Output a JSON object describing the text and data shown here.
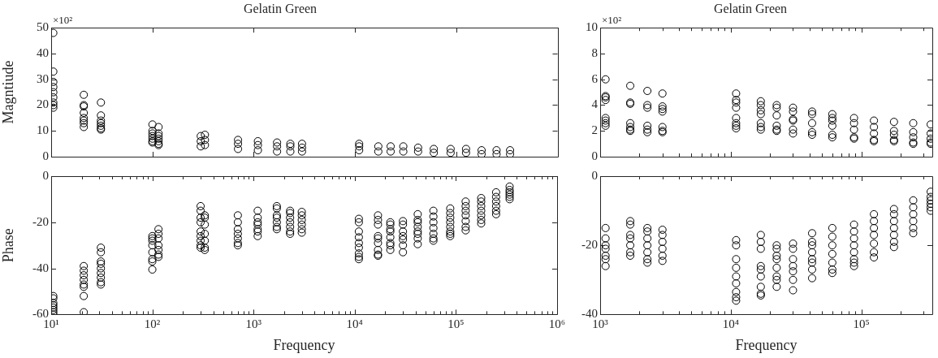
{
  "chart_data": [
    {
      "type": "scatter",
      "title": "Gelatin Green",
      "ylabel": "Magntiude",
      "annotations": [
        "×10²"
      ],
      "log": "x",
      "tick_labels": "y",
      "marker": "circle",
      "xlim": [
        10,
        1000000
      ],
      "xticks": [
        10,
        100,
        1000,
        10000,
        100000,
        1000000
      ],
      "ylim": [
        0,
        50
      ],
      "yticks": [
        0,
        10,
        20,
        30,
        40,
        50
      ],
      "series": [
        {
          "color": "#000000",
          "x": [
            10.5,
            10.5,
            10.5,
            10.5,
            10.5,
            10.5,
            10.5,
            10.5,
            10.5
          ],
          "values": [
            48,
            33,
            29,
            27,
            25,
            23,
            21,
            20,
            19
          ]
        },
        {
          "color": "#000000",
          "x": [
            21,
            21,
            21,
            21,
            21,
            21,
            21,
            21
          ],
          "values": [
            24,
            20,
            19.5,
            17,
            15,
            14,
            13,
            11.5
          ]
        },
        {
          "color": "#000000",
          "x": [
            31,
            31,
            31,
            31,
            31,
            31,
            31
          ],
          "values": [
            21,
            16,
            14,
            13,
            12,
            11,
            10.5
          ]
        },
        {
          "color": "#000000",
          "x": [
            100,
            100,
            100,
            100,
            100,
            100,
            100
          ],
          "values": [
            12.5,
            10,
            9,
            8,
            7,
            6,
            5.5
          ]
        },
        {
          "color": "#000000",
          "x": [
            115,
            115,
            115,
            115,
            115,
            115,
            115
          ],
          "values": [
            11.5,
            9,
            8,
            7,
            6,
            5,
            4.5
          ]
        },
        {
          "color": "#000000",
          "x": [
            300,
            300,
            300
          ],
          "values": [
            8,
            6,
            4
          ]
        },
        {
          "color": "#000000",
          "x": [
            330,
            330,
            330
          ],
          "values": [
            8.5,
            6.5,
            4.5
          ]
        },
        {
          "color": "#000000",
          "x": [
            700,
            700,
            700
          ],
          "values": [
            6.5,
            5,
            3
          ]
        },
        {
          "color": "#000000",
          "x": [
            1100,
            1100,
            1100
          ],
          "values": [
            6,
            4.5,
            2.5
          ]
        },
        {
          "color": "#000000",
          "x": [
            1700,
            1700,
            1700
          ],
          "values": [
            5.5,
            4,
            2
          ]
        },
        {
          "color": "#000000",
          "x": [
            2300,
            2300,
            2300
          ],
          "values": [
            5,
            4,
            2
          ]
        },
        {
          "color": "#000000",
          "x": [
            3000,
            3000,
            3000
          ],
          "values": [
            5,
            3.5,
            2
          ]
        },
        {
          "color": "#000000",
          "x": [
            11000,
            11000,
            11000
          ],
          "values": [
            5,
            4,
            2.5
          ]
        },
        {
          "color": "#000000",
          "x": [
            17000,
            17000
          ],
          "values": [
            4,
            2
          ]
        },
        {
          "color": "#000000",
          "x": [
            22500,
            22500
          ],
          "values": [
            4,
            2
          ]
        },
        {
          "color": "#000000",
          "x": [
            30000,
            30000
          ],
          "values": [
            4,
            2
          ]
        },
        {
          "color": "#000000",
          "x": [
            42000,
            42000
          ],
          "values": [
            3.5,
            2
          ]
        },
        {
          "color": "#000000",
          "x": [
            60000,
            60000
          ],
          "values": [
            3,
            1.5
          ]
        },
        {
          "color": "#000000",
          "x": [
            88000,
            88000
          ],
          "values": [
            3,
            1.5
          ]
        },
        {
          "color": "#000000",
          "x": [
            125000,
            125000
          ],
          "values": [
            3,
            1.5
          ]
        },
        {
          "color": "#000000",
          "x": [
            178000,
            178000
          ],
          "values": [
            2.5,
            1
          ]
        },
        {
          "color": "#000000",
          "x": [
            250000,
            250000
          ],
          "values": [
            2.5,
            1
          ]
        },
        {
          "color": "#000000",
          "x": [
            340000,
            340000
          ],
          "values": [
            2.5,
            1
          ]
        }
      ]
    },
    {
      "type": "scatter",
      "title": "Gelatin Green",
      "annotations": [
        "×10²"
      ],
      "log": "x",
      "tick_labels": "y",
      "marker": "circle",
      "xlim": [
        1000,
        350000
      ],
      "xticks": [
        1000,
        {
          "value": 2000,
          "label": null
        },
        {
          "value": 3000,
          "label": null
        },
        {
          "value": 4000,
          "label": null
        },
        {
          "value": 5000,
          "label": null
        },
        {
          "value": 6000,
          "label": null
        },
        {
          "value": 7000,
          "label": null
        },
        {
          "value": 8000,
          "label": null
        },
        {
          "value": 9000,
          "label": null
        },
        10000,
        {
          "value": 20000,
          "label": null
        },
        {
          "value": 30000,
          "label": null
        },
        {
          "value": 40000,
          "label": null
        },
        {
          "value": 50000,
          "label": null
        },
        {
          "value": 60000,
          "label": null
        },
        {
          "value": 70000,
          "label": null
        },
        {
          "value": 80000,
          "label": null
        },
        {
          "value": 90000,
          "label": null
        },
        100000,
        {
          "value": 200000,
          "label": null
        },
        {
          "value": 300000,
          "label": null
        }
      ],
      "ylim": [
        0,
        10
      ],
      "yticks": [
        0,
        2,
        4,
        6,
        8,
        10
      ],
      "series": [
        {
          "color": "#000000",
          "x": [
            1100,
            1100,
            1100,
            1100,
            1100,
            1100,
            1100,
            1100
          ],
          "values": [
            6.0,
            4.7,
            4.6,
            4.4,
            3.0,
            2.8,
            2.6,
            2.4
          ]
        },
        {
          "color": "#000000",
          "x": [
            1700,
            1700,
            1700,
            1700,
            1700,
            1700,
            1700
          ],
          "values": [
            5.5,
            4.2,
            4.1,
            2.6,
            2.3,
            2.1,
            2.0
          ]
        },
        {
          "color": "#000000",
          "x": [
            2300,
            2300,
            2300,
            2300,
            2300,
            2300
          ],
          "values": [
            5.1,
            4.0,
            3.8,
            2.4,
            2.1,
            1.9
          ]
        },
        {
          "color": "#000000",
          "x": [
            3000,
            3000,
            3000,
            3000,
            3000,
            3000,
            3000
          ],
          "values": [
            4.9,
            3.9,
            3.7,
            3.5,
            2.3,
            2.0,
            1.9
          ]
        },
        {
          "color": "#000000",
          "x": [
            11000,
            11000,
            11000,
            11000,
            11000,
            11000,
            11000,
            11000
          ],
          "values": [
            4.9,
            4.4,
            4.2,
            3.8,
            3.0,
            2.6,
            2.4,
            2.2
          ]
        },
        {
          "color": "#000000",
          "x": [
            17000,
            17000,
            17000,
            17000,
            17000,
            17000,
            17000
          ],
          "values": [
            4.3,
            4.0,
            3.6,
            3.3,
            2.6,
            2.3,
            2.1
          ]
        },
        {
          "color": "#000000",
          "x": [
            22500,
            22500,
            22500,
            22500,
            22500,
            22500
          ],
          "values": [
            4.0,
            3.8,
            3.2,
            2.4,
            2.1,
            2.0
          ]
        },
        {
          "color": "#000000",
          "x": [
            30000,
            30000,
            30000,
            30000,
            30000,
            30000
          ],
          "values": [
            3.8,
            3.5,
            2.9,
            2.8,
            2.1,
            1.8
          ]
        },
        {
          "color": "#000000",
          "x": [
            42000,
            42000,
            42000,
            42000,
            42000
          ],
          "values": [
            3.5,
            3.3,
            2.6,
            1.9,
            1.7
          ]
        },
        {
          "color": "#000000",
          "x": [
            60000,
            60000,
            60000,
            60000,
            60000,
            60000
          ],
          "values": [
            3.3,
            3.0,
            2.8,
            2.4,
            1.7,
            1.5
          ]
        },
        {
          "color": "#000000",
          "x": [
            88000,
            88000,
            88000,
            88000,
            88000
          ],
          "values": [
            3.0,
            2.6,
            2.1,
            1.5,
            1.4
          ]
        },
        {
          "color": "#000000",
          "x": [
            125000,
            125000,
            125000,
            125000,
            125000
          ],
          "values": [
            2.8,
            2.3,
            1.8,
            1.3,
            1.2
          ]
        },
        {
          "color": "#000000",
          "x": [
            178000,
            178000,
            178000,
            178000,
            178000
          ],
          "values": [
            2.7,
            2.0,
            1.7,
            1.3,
            1.2
          ]
        },
        {
          "color": "#000000",
          "x": [
            250000,
            250000,
            250000,
            250000,
            250000
          ],
          "values": [
            2.6,
            1.9,
            1.5,
            1.1,
            1.0
          ]
        },
        {
          "color": "#000000",
          "x": [
            340000,
            340000,
            340000,
            340000,
            340000
          ],
          "values": [
            2.5,
            1.8,
            1.4,
            1.1,
            1.0
          ]
        }
      ]
    },
    {
      "type": "scatter",
      "ylabel": "Phase",
      "xlabel": "Frequency",
      "log": "x",
      "marker": "circle",
      "xlim": [
        10,
        1000000
      ],
      "xticks": [
        {
          "value": 10,
          "label": "10¹"
        },
        {
          "value": 20,
          "label": null
        },
        {
          "value": 30,
          "label": null
        },
        {
          "value": 40,
          "label": null
        },
        {
          "value": 50,
          "label": null
        },
        {
          "value": 60,
          "label": null
        },
        {
          "value": 70,
          "label": null
        },
        {
          "value": 80,
          "label": null
        },
        {
          "value": 90,
          "label": null
        },
        {
          "value": 100,
          "label": "10²"
        },
        {
          "value": 200,
          "label": null
        },
        {
          "value": 300,
          "label": null
        },
        {
          "value": 400,
          "label": null
        },
        {
          "value": 500,
          "label": null
        },
        {
          "value": 600,
          "label": null
        },
        {
          "value": 700,
          "label": null
        },
        {
          "value": 800,
          "label": null
        },
        {
          "value": 900,
          "label": null
        },
        {
          "value": 1000,
          "label": "10³"
        },
        {
          "value": 2000,
          "label": null
        },
        {
          "value": 3000,
          "label": null
        },
        {
          "value": 4000,
          "label": null
        },
        {
          "value": 5000,
          "label": null
        },
        {
          "value": 6000,
          "label": null
        },
        {
          "value": 7000,
          "label": null
        },
        {
          "value": 8000,
          "label": null
        },
        {
          "value": 9000,
          "label": null
        },
        {
          "value": 10000,
          "label": "10⁴"
        },
        {
          "value": 20000,
          "label": null
        },
        {
          "value": 30000,
          "label": null
        },
        {
          "value": 40000,
          "label": null
        },
        {
          "value": 50000,
          "label": null
        },
        {
          "value": 60000,
          "label": null
        },
        {
          "value": 70000,
          "label": null
        },
        {
          "value": 80000,
          "label": null
        },
        {
          "value": 90000,
          "label": null
        },
        {
          "value": 100000,
          "label": "10⁵"
        },
        {
          "value": 200000,
          "label": null
        },
        {
          "value": 300000,
          "label": null
        },
        {
          "value": 400000,
          "label": null
        },
        {
          "value": 500000,
          "label": null
        },
        {
          "value": 600000,
          "label": null
        },
        {
          "value": 700000,
          "label": null
        },
        {
          "value": 800000,
          "label": null
        },
        {
          "value": 900000,
          "label": null
        },
        {
          "value": 1000000,
          "label": "10⁶"
        }
      ],
      "ylim": [
        -60,
        0
      ],
      "yticks": [
        -60,
        -40,
        -20,
        0
      ],
      "series": [
        {
          "color": "#000000",
          "x": [
            10.5,
            10.5,
            10.5,
            10.5,
            10.5,
            10.5,
            10.5,
            10.5
          ],
          "values": [
            -52,
            -53,
            -55,
            -56,
            -57,
            -58,
            -59,
            -60
          ]
        },
        {
          "color": "#000000",
          "x": [
            21,
            21,
            21,
            21,
            21,
            21,
            21,
            21
          ],
          "values": [
            -39,
            -41,
            -43,
            -45,
            -47,
            -48,
            -52,
            -59
          ]
        },
        {
          "color": "#000000",
          "x": [
            31,
            31,
            31,
            31,
            31,
            31,
            31,
            31,
            31
          ],
          "values": [
            -31,
            -33,
            -37,
            -38,
            -40,
            -42,
            -44,
            -46,
            -47
          ]
        },
        {
          "color": "#000000",
          "x": [
            100,
            100,
            100,
            100,
            100,
            100,
            100,
            100
          ],
          "values": [
            -26,
            -27,
            -28,
            -30,
            -33,
            -36,
            -37,
            -40.5
          ]
        },
        {
          "color": "#000000",
          "x": [
            115,
            115,
            115,
            115,
            115,
            115,
            115
          ],
          "values": [
            -23,
            -25,
            -27,
            -30,
            -32,
            -34,
            -35
          ]
        },
        {
          "color": "#000000",
          "x": [
            300,
            300,
            300,
            300,
            300,
            300,
            300,
            300,
            300
          ],
          "values": [
            -13,
            -15,
            -18,
            -20,
            -24,
            -26,
            -28,
            -30,
            -31
          ]
        },
        {
          "color": "#000000",
          "x": [
            330,
            330,
            330,
            330,
            330,
            330,
            330
          ],
          "values": [
            -17,
            -18,
            -21,
            -25,
            -28,
            -31,
            -32
          ]
        },
        {
          "color": "#000000",
          "x": [
            700,
            700,
            700,
            700,
            700,
            700,
            700
          ],
          "values": [
            -17,
            -20,
            -23,
            -25,
            -27,
            -29,
            -30
          ]
        },
        {
          "color": "#000000",
          "x": [
            1100,
            1100,
            1100,
            1100,
            1100,
            1100,
            1100
          ],
          "values": [
            -15,
            -18,
            -20,
            -21,
            -23,
            -24,
            -26
          ]
        },
        {
          "color": "#000000",
          "x": [
            1700,
            1700,
            1700,
            1700,
            1700,
            1700,
            1700
          ],
          "values": [
            -13,
            -14,
            -17,
            -18,
            -20,
            -22,
            -23
          ]
        },
        {
          "color": "#000000",
          "x": [
            2300,
            2300,
            2300,
            2300,
            2300,
            2300,
            2300
          ],
          "values": [
            -15,
            -16,
            -18,
            -20,
            -22,
            -24,
            -25
          ]
        },
        {
          "color": "#000000",
          "x": [
            3000,
            3000,
            3000,
            3000,
            3000,
            3000
          ],
          "values": [
            -15.5,
            -17,
            -19,
            -21,
            -23,
            -24.5
          ]
        },
        {
          "color": "#000000",
          "x": [
            11000,
            11000,
            11000,
            11000,
            11000,
            11000,
            11000,
            11000,
            11000
          ],
          "values": [
            -18.5,
            -20,
            -24,
            -26.5,
            -29,
            -31,
            -33.5,
            -35,
            -36
          ]
        },
        {
          "color": "#000000",
          "x": [
            17000,
            17000,
            17000,
            17000,
            17000,
            17000,
            17000,
            17000,
            17000
          ],
          "values": [
            -17,
            -19,
            -21,
            -26,
            -27,
            -29,
            -32,
            -34,
            -34.5
          ]
        },
        {
          "color": "#000000",
          "x": [
            22500,
            22500,
            22500,
            22500,
            22500,
            22500,
            22500,
            22500
          ],
          "values": [
            -20,
            -21,
            -23,
            -24,
            -26.5,
            -29,
            -30,
            -32
          ]
        },
        {
          "color": "#000000",
          "x": [
            30000,
            30000,
            30000,
            30000,
            30000,
            30000,
            30000
          ],
          "values": [
            -19.5,
            -21,
            -24,
            -26,
            -27.5,
            -30,
            -33
          ]
        },
        {
          "color": "#000000",
          "x": [
            42000,
            42000,
            42000,
            42000,
            42000,
            42000,
            42000,
            42000
          ],
          "values": [
            -16.5,
            -19,
            -20,
            -22,
            -24,
            -25,
            -27,
            -29.5
          ]
        },
        {
          "color": "#000000",
          "x": [
            60000,
            60000,
            60000,
            60000,
            60000,
            60000,
            60000
          ],
          "values": [
            -15,
            -17.5,
            -20,
            -22.5,
            -25,
            -27,
            -28
          ]
        },
        {
          "color": "#000000",
          "x": [
            88000,
            88000,
            88000,
            88000,
            88000,
            88000,
            88000,
            88000
          ],
          "values": [
            -14,
            -16,
            -18,
            -20,
            -22,
            -24,
            -25,
            -26
          ]
        },
        {
          "color": "#000000",
          "x": [
            125000,
            125000,
            125000,
            125000,
            125000,
            125000,
            125000
          ],
          "values": [
            -11,
            -13,
            -15,
            -17,
            -19.5,
            -22,
            -23.5
          ]
        },
        {
          "color": "#000000",
          "x": [
            178000,
            178000,
            178000,
            178000,
            178000,
            178000,
            178000
          ],
          "values": [
            -9.5,
            -11,
            -13,
            -15,
            -17,
            -19,
            -20.5
          ]
        },
        {
          "color": "#000000",
          "x": [
            250000,
            250000,
            250000,
            250000,
            250000,
            250000
          ],
          "values": [
            -7,
            -9,
            -11,
            -13,
            -15,
            -16.5
          ]
        },
        {
          "color": "#000000",
          "x": [
            340000,
            340000,
            340000,
            340000,
            340000,
            340000
          ],
          "values": [
            -4.5,
            -6,
            -7,
            -8,
            -9,
            -10
          ]
        }
      ]
    },
    {
      "type": "scatter",
      "xlabel": "Frequency",
      "log": "x",
      "marker": "circle",
      "xlim": [
        1000,
        350000
      ],
      "xticks": [
        {
          "value": 1000,
          "label": "10³"
        },
        {
          "value": 2000,
          "label": null
        },
        {
          "value": 3000,
          "label": null
        },
        {
          "value": 4000,
          "label": null
        },
        {
          "value": 5000,
          "label": null
        },
        {
          "value": 6000,
          "label": null
        },
        {
          "value": 7000,
          "label": null
        },
        {
          "value": 8000,
          "label": null
        },
        {
          "value": 9000,
          "label": null
        },
        {
          "value": 10000,
          "label": "10⁴"
        },
        {
          "value": 20000,
          "label": null
        },
        {
          "value": 30000,
          "label": null
        },
        {
          "value": 40000,
          "label": null
        },
        {
          "value": 50000,
          "label": null
        },
        {
          "value": 60000,
          "label": null
        },
        {
          "value": 70000,
          "label": null
        },
        {
          "value": 80000,
          "label": null
        },
        {
          "value": 90000,
          "label": null
        },
        {
          "value": 100000,
          "label": "10⁵"
        },
        {
          "value": 200000,
          "label": null
        },
        {
          "value": 300000,
          "label": null
        }
      ],
      "ylim": [
        -40,
        0
      ],
      "yticks": [
        -40,
        -20,
        0
      ],
      "series": [
        {
          "color": "#000000",
          "x": [
            1100,
            1100,
            1100,
            1100,
            1100,
            1100,
            1100
          ],
          "values": [
            -15,
            -18,
            -20,
            -21,
            -23,
            -24,
            -26
          ]
        },
        {
          "color": "#000000",
          "x": [
            1700,
            1700,
            1700,
            1700,
            1700,
            1700,
            1700
          ],
          "values": [
            -13,
            -14,
            -17,
            -18,
            -20,
            -22,
            -23
          ]
        },
        {
          "color": "#000000",
          "x": [
            2300,
            2300,
            2300,
            2300,
            2300,
            2300,
            2300
          ],
          "values": [
            -15,
            -16,
            -18,
            -20,
            -22,
            -24,
            -25
          ]
        },
        {
          "color": "#000000",
          "x": [
            3000,
            3000,
            3000,
            3000,
            3000,
            3000
          ],
          "values": [
            -15.5,
            -17,
            -19,
            -21,
            -23,
            -24.5
          ]
        },
        {
          "color": "#000000",
          "x": [
            11000,
            11000,
            11000,
            11000,
            11000,
            11000,
            11000,
            11000,
            11000
          ],
          "values": [
            -18.5,
            -20,
            -24,
            -26.5,
            -29,
            -31,
            -33.5,
            -35,
            -36
          ]
        },
        {
          "color": "#000000",
          "x": [
            17000,
            17000,
            17000,
            17000,
            17000,
            17000,
            17000,
            17000,
            17000
          ],
          "values": [
            -17,
            -19,
            -21,
            -26,
            -27,
            -29,
            -32,
            -34,
            -34.5
          ]
        },
        {
          "color": "#000000",
          "x": [
            22500,
            22500,
            22500,
            22500,
            22500,
            22500,
            22500,
            22500
          ],
          "values": [
            -20,
            -21,
            -23,
            -24,
            -26.5,
            -29,
            -30,
            -32
          ]
        },
        {
          "color": "#000000",
          "x": [
            30000,
            30000,
            30000,
            30000,
            30000,
            30000,
            30000
          ],
          "values": [
            -19.5,
            -21,
            -24,
            -26,
            -27.5,
            -30,
            -33
          ]
        },
        {
          "color": "#000000",
          "x": [
            42000,
            42000,
            42000,
            42000,
            42000,
            42000,
            42000,
            42000
          ],
          "values": [
            -16.5,
            -19,
            -20,
            -22,
            -24,
            -25,
            -27,
            -29.5
          ]
        },
        {
          "color": "#000000",
          "x": [
            60000,
            60000,
            60000,
            60000,
            60000,
            60000,
            60000
          ],
          "values": [
            -15,
            -17.5,
            -20,
            -22.5,
            -25,
            -27,
            -28
          ]
        },
        {
          "color": "#000000",
          "x": [
            88000,
            88000,
            88000,
            88000,
            88000,
            88000,
            88000,
            88000
          ],
          "values": [
            -14,
            -16,
            -18,
            -20,
            -22,
            -24,
            -25,
            -26
          ]
        },
        {
          "color": "#000000",
          "x": [
            125000,
            125000,
            125000,
            125000,
            125000,
            125000,
            125000
          ],
          "values": [
            -11,
            -13,
            -15,
            -17,
            -19.5,
            -22,
            -23.5
          ]
        },
        {
          "color": "#000000",
          "x": [
            178000,
            178000,
            178000,
            178000,
            178000,
            178000,
            178000
          ],
          "values": [
            -9.5,
            -11,
            -13,
            -15,
            -17,
            -19,
            -20.5
          ]
        },
        {
          "color": "#000000",
          "x": [
            250000,
            250000,
            250000,
            250000,
            250000,
            250000
          ],
          "values": [
            -7,
            -9,
            -11,
            -13,
            -15,
            -16.5
          ]
        },
        {
          "color": "#000000",
          "x": [
            340000,
            340000,
            340000,
            340000,
            340000,
            340000
          ],
          "values": [
            -4.5,
            -6,
            -7,
            -8,
            -9,
            -10
          ]
        }
      ]
    }
  ]
}
